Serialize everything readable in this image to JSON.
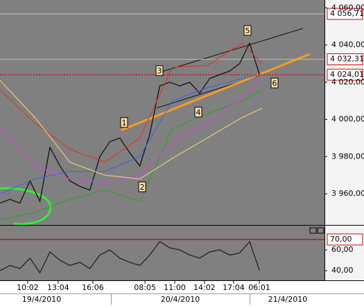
{
  "chart_data": [
    {
      "type": "line",
      "x": [
        0,
        4,
        8,
        12,
        16,
        20,
        24,
        28,
        32,
        36,
        40,
        44,
        48,
        52,
        56,
        60,
        64,
        68,
        72,
        76,
        80,
        84,
        88,
        92,
        96,
        100,
        104
      ],
      "xlim": [
        0,
        130
      ],
      "xticks": [
        {
          "value": 11.1,
          "label": "10:02"
        },
        {
          "value": 23.3,
          "label": "13:04"
        },
        {
          "value": 37.2,
          "label": "16:06"
        },
        {
          "value": 58.1,
          "label": "08:05"
        },
        {
          "value": 70,
          "label": "11:00"
        },
        {
          "value": 81.9,
          "label": "14:02"
        },
        {
          "value": 93.6,
          "label": "17:04"
        },
        {
          "value": 103.9,
          "label": "06:01"
        }
      ],
      "dates": [
        "19/4/2010",
        "20/4/2010",
        "21/4/2010"
      ],
      "ylim": [
        3943.26,
        4064.19
      ],
      "yticks": [
        {
          "value": 4060,
          "label": "4 060,00"
        },
        {
          "value": 4040,
          "label": "4 040,00"
        },
        {
          "value": 4020,
          "label": "4 020,00"
        },
        {
          "value": 4000,
          "label": "4 000,00"
        },
        {
          "value": 3980,
          "label": "3 980,00"
        },
        {
          "value": 3960,
          "label": "3 960,00"
        }
      ],
      "levels": [
        {
          "value": 4056.71,
          "label": "4 056,71",
          "color": "#b8b8b8"
        },
        {
          "value": 4032.31,
          "label": "4 032,31",
          "color": "#b8b8b8"
        },
        {
          "value": 4024.01,
          "label": "4 024,01",
          "color": "#d00000"
        }
      ],
      "annotations": [
        "1",
        "2",
        "3",
        "4",
        "5",
        "6"
      ],
      "series": [
        {
          "color": "#111111",
          "values": [
            3955,
            3957,
            3955,
            3967,
            3956,
            3985,
            3975,
            3967,
            3964,
            3962,
            3980,
            3988,
            3990,
            3982,
            3975,
            3992,
            4018,
            4020,
            4018,
            4020,
            4014,
            4022,
            4024,
            4026,
            4030,
            4041,
            4024
          ]
        },
        {
          "color": "#e03030",
          "x": [
            0,
            14,
            28,
            42,
            56,
            69,
            83,
            97,
            105
          ],
          "values": [
            4016,
            3998,
            3984,
            3977,
            3990,
            4028,
            4029,
            4041,
            4030
          ]
        },
        {
          "color": "#2ea02e",
          "x": [
            0,
            14,
            28,
            42,
            56,
            69,
            83,
            97,
            105
          ],
          "values": [
            3946,
            3950,
            3957,
            3962,
            3956,
            3995,
            4003,
            4010,
            4016
          ]
        },
        {
          "color": "#4060e0",
          "x": [
            0,
            14,
            28,
            42,
            56,
            69,
            83,
            97,
            105
          ],
          "values": [
            3960,
            3968,
            3972,
            3972,
            3980,
            4010,
            4017,
            4022,
            4024
          ]
        },
        {
          "color": "#e040e0",
          "x": [
            0,
            14,
            28,
            42,
            56,
            69,
            83,
            97,
            105
          ],
          "values": [
            3995,
            3975,
            3968,
            3966,
            3970,
            3987,
            3998,
            4012,
            4022
          ]
        },
        {
          "color": "#f0d080",
          "x": [
            0,
            14,
            28,
            42,
            56,
            69,
            83,
            97,
            105
          ],
          "values": [
            4021,
            4001,
            3977,
            3970,
            3968,
            3979,
            3990,
            4001,
            4006
          ]
        }
      ]
    },
    {
      "type": "line",
      "ylim": [
        30.7,
        83.3
      ],
      "yticks": [
        {
          "value": 60,
          "label": "60,00"
        },
        {
          "value": 40,
          "label": "40,00"
        }
      ],
      "levels": [
        {
          "value": 70,
          "label": "70,00",
          "color": "#d00000"
        }
      ],
      "series": [
        {
          "color": "#222222",
          "values": [
            40,
            45,
            42,
            52,
            38,
            58,
            50,
            45,
            48,
            42,
            55,
            60,
            52,
            48,
            45,
            55,
            68,
            62,
            60,
            55,
            52,
            58,
            60,
            55,
            57,
            68,
            40
          ]
        }
      ]
    }
  ]
}
